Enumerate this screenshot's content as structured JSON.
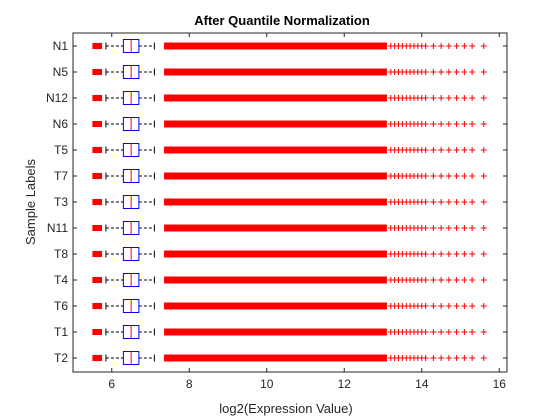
{
  "chart_data": {
    "type": "boxplot",
    "orientation": "horizontal",
    "title": "After Quantile Normalization",
    "xlabel": "log2(Expression Value)",
    "ylabel": "Sample Labels",
    "xlim": [
      5,
      16.2
    ],
    "xticks": [
      6,
      8,
      10,
      12,
      14,
      16
    ],
    "grid": false,
    "colors": {
      "box": "#0000ff",
      "median": "#ff0000",
      "whisker": "#000000",
      "outlier": "#ff0000",
      "axis": "#262626"
    },
    "categories": [
      "N1",
      "N5",
      "N12",
      "N6",
      "T5",
      "T7",
      "T3",
      "N11",
      "T8",
      "T4",
      "T6",
      "T1",
      "T2"
    ],
    "box_stats": {
      "lower_whisker": 5.85,
      "q1": 6.3,
      "median": 6.5,
      "q3": 6.7,
      "upper_whisker": 7.1
    },
    "outliers": {
      "low_range": [
        5.5,
        5.75
      ],
      "high_dense_range": [
        7.35,
        13.1
      ],
      "high_sparse": [
        13.2,
        13.3,
        13.4,
        13.5,
        13.6,
        13.7,
        13.8,
        13.9,
        14.0,
        14.1,
        14.3,
        14.5,
        14.7,
        14.9,
        15.1,
        15.3,
        15.6
      ]
    }
  }
}
